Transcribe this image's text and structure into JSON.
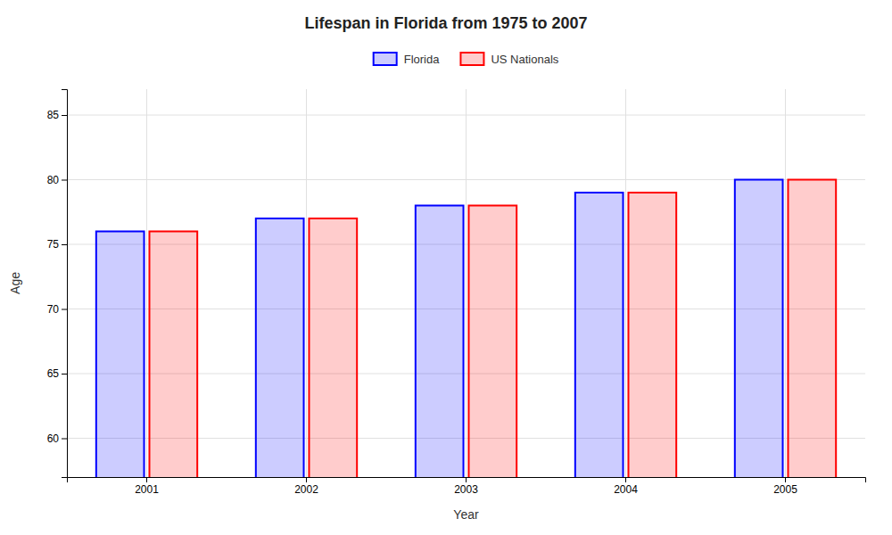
{
  "chart_data": {
    "type": "bar",
    "title": "Lifespan in Florida from 1975 to 2007",
    "x_label": "Year",
    "y_label": "Age",
    "categories": [
      "2001",
      "2002",
      "2003",
      "2004",
      "2005"
    ],
    "series": [
      {
        "name": "Florida",
        "color": "#0000ff",
        "values": [
          76,
          77,
          78,
          79,
          80
        ]
      },
      {
        "name": "US Nationals",
        "color": "#ff0000",
        "values": [
          76,
          77,
          78,
          79,
          80
        ]
      }
    ],
    "ylim": [
      57,
      87
    ],
    "yticks": [
      60,
      65,
      70,
      75,
      80,
      85
    ],
    "grid": true,
    "legend": "top"
  }
}
